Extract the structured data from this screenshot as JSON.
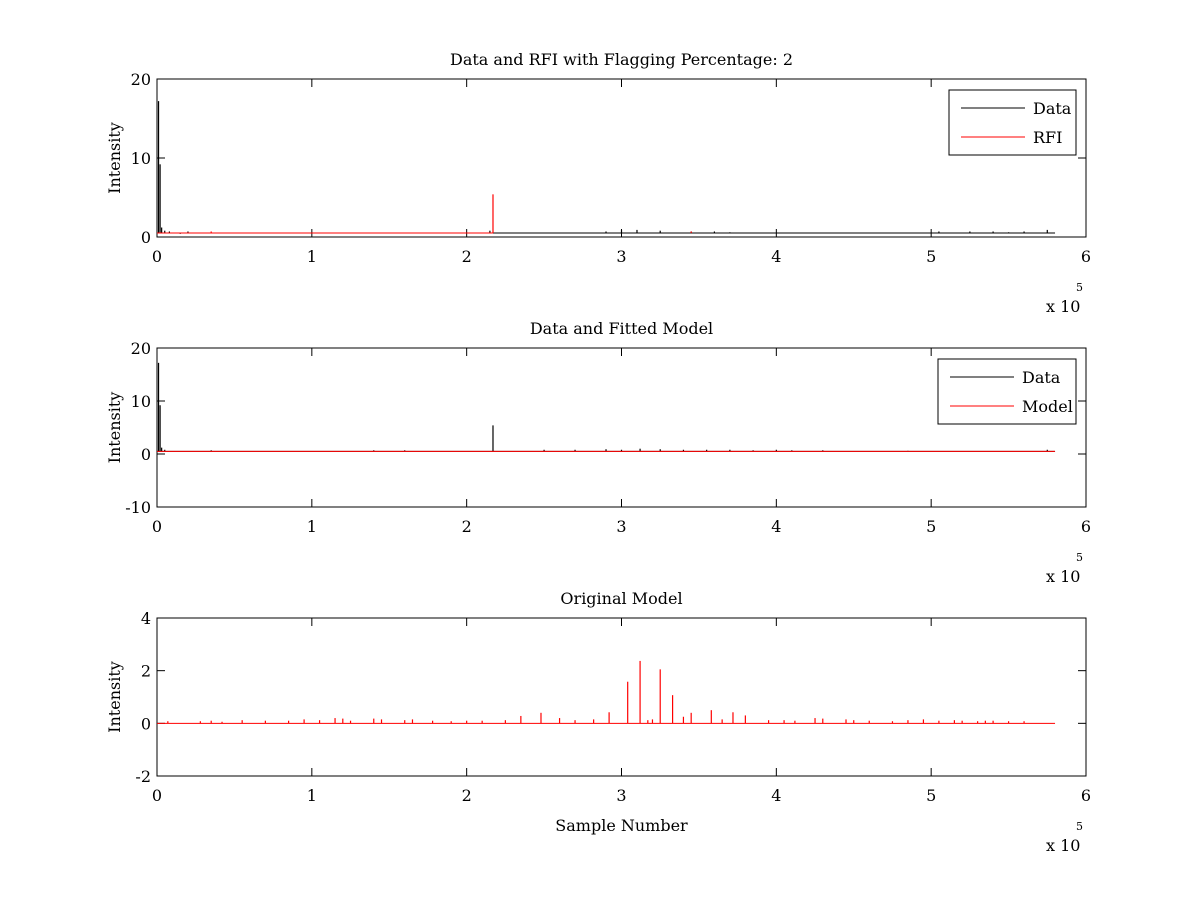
{
  "figure": {
    "background": "#ffffff",
    "colors": {
      "data": "#000000",
      "rfi": "#ff0000",
      "model": "#ff0000"
    }
  },
  "chart_data": [
    {
      "type": "line",
      "title": "Data and RFI with Flagging Percentage: 2",
      "xlabel": "",
      "ylabel": "Intensity",
      "xlim": [
        0,
        6
      ],
      "ylim": [
        0,
        20
      ],
      "xticks": [
        0,
        1,
        2,
        3,
        4,
        5,
        6
      ],
      "yticks": [
        0,
        10,
        20
      ],
      "x_multiplier": "x 10",
      "x_multiplier_exp": "5",
      "grid": false,
      "legend_position": "top-right",
      "series": [
        {
          "name": "Data",
          "color": "#000000",
          "baseline": 0.5,
          "x_end": 5.8,
          "spikes": [
            [
              0.01,
              17.2
            ],
            [
              0.02,
              9.2
            ],
            [
              0.03,
              1.2
            ],
            [
              0.05,
              0.8
            ],
            [
              0.08,
              0.7
            ],
            [
              0.15,
              0.4
            ],
            [
              0.2,
              0.7
            ],
            [
              2.15,
              0.8
            ],
            [
              2.9,
              0.7
            ],
            [
              3.0,
              0.9
            ],
            [
              3.1,
              0.9
            ],
            [
              3.25,
              0.8
            ],
            [
              3.45,
              0.7
            ],
            [
              3.6,
              0.7
            ],
            [
              3.7,
              0.6
            ],
            [
              5.05,
              0.7
            ],
            [
              5.25,
              0.7
            ],
            [
              5.4,
              0.7
            ],
            [
              5.5,
              0.6
            ],
            [
              5.6,
              0.7
            ],
            [
              5.75,
              0.9
            ]
          ]
        },
        {
          "name": "RFI",
          "color": "#ff0000",
          "baseline": 0.5,
          "x_end": 2.17,
          "spikes": [
            [
              0.02,
              0.6
            ],
            [
              0.35,
              0.7
            ],
            [
              2.17,
              5.4
            ],
            [
              3.45,
              0.7
            ]
          ]
        }
      ]
    },
    {
      "type": "line",
      "title": "Data and Fitted Model",
      "xlabel": "",
      "ylabel": "Intensity",
      "xlim": [
        0,
        6
      ],
      "ylim": [
        -10,
        20
      ],
      "xticks": [
        0,
        1,
        2,
        3,
        4,
        5,
        6
      ],
      "yticks": [
        -10,
        0,
        10,
        20
      ],
      "x_multiplier": "x 10",
      "x_multiplier_exp": "5",
      "grid": false,
      "legend_position": "top-right",
      "series": [
        {
          "name": "Data",
          "color": "#000000",
          "baseline": 0.5,
          "x_end": 5.8,
          "spikes": [
            [
              0.01,
              17.2
            ],
            [
              0.02,
              9.2
            ],
            [
              0.03,
              1.2
            ],
            [
              0.05,
              0.8
            ],
            [
              0.35,
              0.7
            ],
            [
              1.4,
              0.7
            ],
            [
              1.6,
              0.7
            ],
            [
              2.17,
              5.4
            ],
            [
              2.5,
              0.8
            ],
            [
              2.7,
              0.8
            ],
            [
              2.9,
              0.9
            ],
            [
              3.0,
              0.8
            ],
            [
              3.12,
              1.0
            ],
            [
              3.25,
              0.9
            ],
            [
              3.4,
              0.8
            ],
            [
              3.55,
              0.8
            ],
            [
              3.7,
              0.8
            ],
            [
              3.85,
              0.7
            ],
            [
              4.0,
              0.8
            ],
            [
              4.1,
              0.7
            ],
            [
              4.3,
              0.7
            ],
            [
              4.85,
              0.6
            ],
            [
              5.75,
              0.8
            ]
          ]
        },
        {
          "name": "Model",
          "color": "#ff0000",
          "baseline": 0.5,
          "x_end": 5.8,
          "spikes": []
        }
      ]
    },
    {
      "type": "line",
      "title": "Original Model",
      "xlabel": "Sample Number",
      "ylabel": "Intensity",
      "xlim": [
        0,
        6
      ],
      "ylim": [
        -2,
        4
      ],
      "xticks": [
        0,
        1,
        2,
        3,
        4,
        5,
        6
      ],
      "yticks": [
        -2,
        0,
        2,
        4
      ],
      "x_multiplier": "x 10",
      "x_multiplier_exp": "5",
      "grid": false,
      "legend_position": "none",
      "series": [
        {
          "name": "",
          "color": "#ff0000",
          "baseline": 0,
          "x_end": 5.8,
          "spikes": [
            [
              0.07,
              0.08
            ],
            [
              0.28,
              0.08
            ],
            [
              0.35,
              0.1
            ],
            [
              0.42,
              0.06
            ],
            [
              0.55,
              0.12
            ],
            [
              0.7,
              0.1
            ],
            [
              0.85,
              0.1
            ],
            [
              0.95,
              0.15
            ],
            [
              1.05,
              0.12
            ],
            [
              1.15,
              0.2
            ],
            [
              1.2,
              0.18
            ],
            [
              1.25,
              0.1
            ],
            [
              1.4,
              0.18
            ],
            [
              1.45,
              0.15
            ],
            [
              1.6,
              0.12
            ],
            [
              1.65,
              0.15
            ],
            [
              1.78,
              0.1
            ],
            [
              1.9,
              0.08
            ],
            [
              2.0,
              0.1
            ],
            [
              2.1,
              0.1
            ],
            [
              2.25,
              0.12
            ],
            [
              2.35,
              0.28
            ],
            [
              2.48,
              0.4
            ],
            [
              2.6,
              0.2
            ],
            [
              2.7,
              0.12
            ],
            [
              2.82,
              0.15
            ],
            [
              2.92,
              0.42
            ],
            [
              3.04,
              1.58
            ],
            [
              3.12,
              2.37
            ],
            [
              3.17,
              0.12
            ],
            [
              3.2,
              0.15
            ],
            [
              3.25,
              2.05
            ],
            [
              3.33,
              1.07
            ],
            [
              3.4,
              0.25
            ],
            [
              3.45,
              0.4
            ],
            [
              3.58,
              0.5
            ],
            [
              3.65,
              0.15
            ],
            [
              3.72,
              0.42
            ],
            [
              3.8,
              0.3
            ],
            [
              3.95,
              0.12
            ],
            [
              4.05,
              0.12
            ],
            [
              4.12,
              0.1
            ],
            [
              4.25,
              0.2
            ],
            [
              4.3,
              0.18
            ],
            [
              4.45,
              0.15
            ],
            [
              4.5,
              0.12
            ],
            [
              4.6,
              0.1
            ],
            [
              4.75,
              0.08
            ],
            [
              4.85,
              0.12
            ],
            [
              4.95,
              0.15
            ],
            [
              5.05,
              0.1
            ],
            [
              5.15,
              0.12
            ],
            [
              5.2,
              0.1
            ],
            [
              5.3,
              0.08
            ],
            [
              5.35,
              0.1
            ],
            [
              5.4,
              0.1
            ],
            [
              5.5,
              0.08
            ],
            [
              5.6,
              0.08
            ]
          ]
        }
      ]
    }
  ]
}
